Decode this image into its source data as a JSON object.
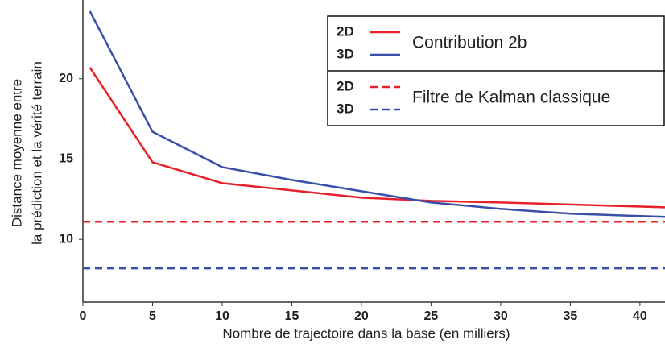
{
  "chart_data": {
    "type": "line",
    "xlabel": "Nombre de trajectoire dans la base (en milliers)",
    "ylabel": [
      "Distance moyenne entre",
      "la prédiction et la vérité terrain"
    ],
    "xlim": [
      0,
      41.8
    ],
    "ylim": [
      6.1,
      24.9
    ],
    "xticks": [
      0,
      5,
      10,
      15,
      20,
      25,
      30,
      35,
      40
    ],
    "yticks": [
      10,
      15,
      20
    ],
    "legend_groups": [
      "Contribution 2b",
      "Filtre de Kalman classique"
    ],
    "series": [
      {
        "name": "2D",
        "group": 0,
        "color": "#e8202a",
        "dashed": false,
        "x": [
          0.5,
          5,
          10,
          20,
          25,
          30,
          41.8
        ],
        "values": [
          20.7,
          14.8,
          13.5,
          12.6,
          12.4,
          12.3,
          12.0
        ]
      },
      {
        "name": "3D",
        "group": 0,
        "color": "#3a4fa8",
        "dashed": false,
        "x": [
          0.5,
          5,
          10,
          15,
          20,
          25,
          30,
          35,
          41.8
        ],
        "values": [
          24.2,
          16.7,
          14.5,
          13.7,
          13.0,
          12.3,
          11.9,
          11.6,
          11.4
        ]
      },
      {
        "name": "2D",
        "group": 1,
        "color": "#e8202a",
        "dashed": true,
        "x": [
          0,
          41.8
        ],
        "values": [
          11.1,
          11.1
        ]
      },
      {
        "name": "3D",
        "group": 1,
        "color": "#3a4fa8",
        "dashed": true,
        "x": [
          0,
          41.8
        ],
        "values": [
          8.2,
          8.2
        ]
      }
    ]
  }
}
